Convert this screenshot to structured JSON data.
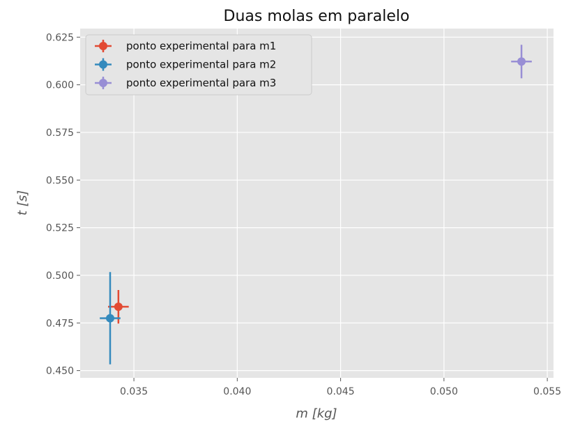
{
  "chart_data": {
    "type": "scatter",
    "title": "Duas molas em paralelo",
    "xlabel": "m [kg]",
    "ylabel": "t [s]",
    "xlim": [
      0.0324,
      0.0553
    ],
    "ylim": [
      0.4462,
      0.6295
    ],
    "x_ticks": [
      0.035,
      0.04,
      0.045,
      0.05,
      0.055
    ],
    "y_ticks": [
      0.45,
      0.475,
      0.5,
      0.525,
      0.55,
      0.575,
      0.6,
      0.625
    ],
    "x_tick_labels": [
      "0.035",
      "0.040",
      "0.045",
      "0.050",
      "0.055"
    ],
    "y_tick_labels": [
      "0.450",
      "0.475",
      "0.500",
      "0.525",
      "0.550",
      "0.575",
      "0.600",
      "0.625"
    ],
    "grid": true,
    "legend_position": "top-left",
    "series": [
      {
        "name": "ponto experimental para m1",
        "color": "#E24A33",
        "x": 0.03425,
        "y": 0.4835,
        "xerr": 0.0005,
        "yerr": 0.0088
      },
      {
        "name": "ponto experimental para m2",
        "color": "#348ABD",
        "x": 0.03385,
        "y": 0.4775,
        "xerr": 0.0005,
        "yerr": 0.0242
      },
      {
        "name": "ponto experimental para m3",
        "color": "#988ED5",
        "x": 0.05375,
        "y": 0.6122,
        "xerr": 0.0005,
        "yerr": 0.0088
      }
    ],
    "colors": {
      "plot_background": "#E5E5E5",
      "grid": "#FFFFFF",
      "text": "#555555",
      "legend_background": "#E5E5E5"
    }
  }
}
